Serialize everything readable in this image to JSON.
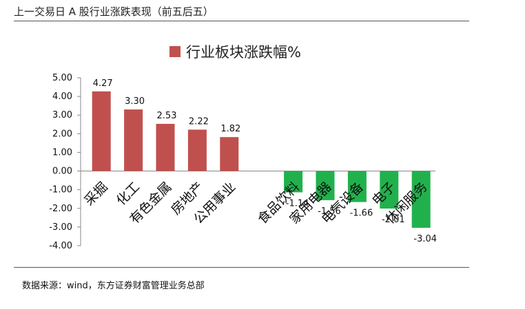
{
  "header": {
    "title": "上一交易日 A 股行业涨跌表现（前五后五）"
  },
  "source": {
    "text": "数据来源：wind，东方证券财富管理业务总部"
  },
  "colors": {
    "positive": "#c0504d",
    "negative": "#21b14c",
    "axis": "#888888"
  },
  "chart_data": {
    "type": "bar",
    "title": "",
    "legend": [
      "行业板块涨跌幅%"
    ],
    "legend_position": "top-center",
    "categories": [
      "采掘",
      "化工",
      "有色金属",
      "房地产",
      "公用事业",
      "",
      "食品饮料",
      "家用电器",
      "电气设备",
      "电子",
      "休闲服务"
    ],
    "series": [
      {
        "name": "行业板块涨跌幅%",
        "values": [
          4.27,
          3.3,
          2.53,
          2.22,
          1.82,
          null,
          -1.14,
          -1.56,
          -1.66,
          -2.01,
          -3.04
        ]
      }
    ],
    "value_labels": [
      "4.27",
      "3.30",
      "2.53",
      "2.22",
      "1.82",
      "",
      "-1.14",
      "-1.56",
      "-1.66",
      "-2.01",
      "-3.04"
    ],
    "y_ticks": [
      "5.00",
      "4.00",
      "3.00",
      "2.00",
      "1.00",
      "0.00",
      "-1.00",
      "-2.00",
      "-3.00",
      "-4.00"
    ],
    "ylim": [
      -4,
      5
    ],
    "xlabel": "",
    "ylabel": "",
    "grid": false
  }
}
